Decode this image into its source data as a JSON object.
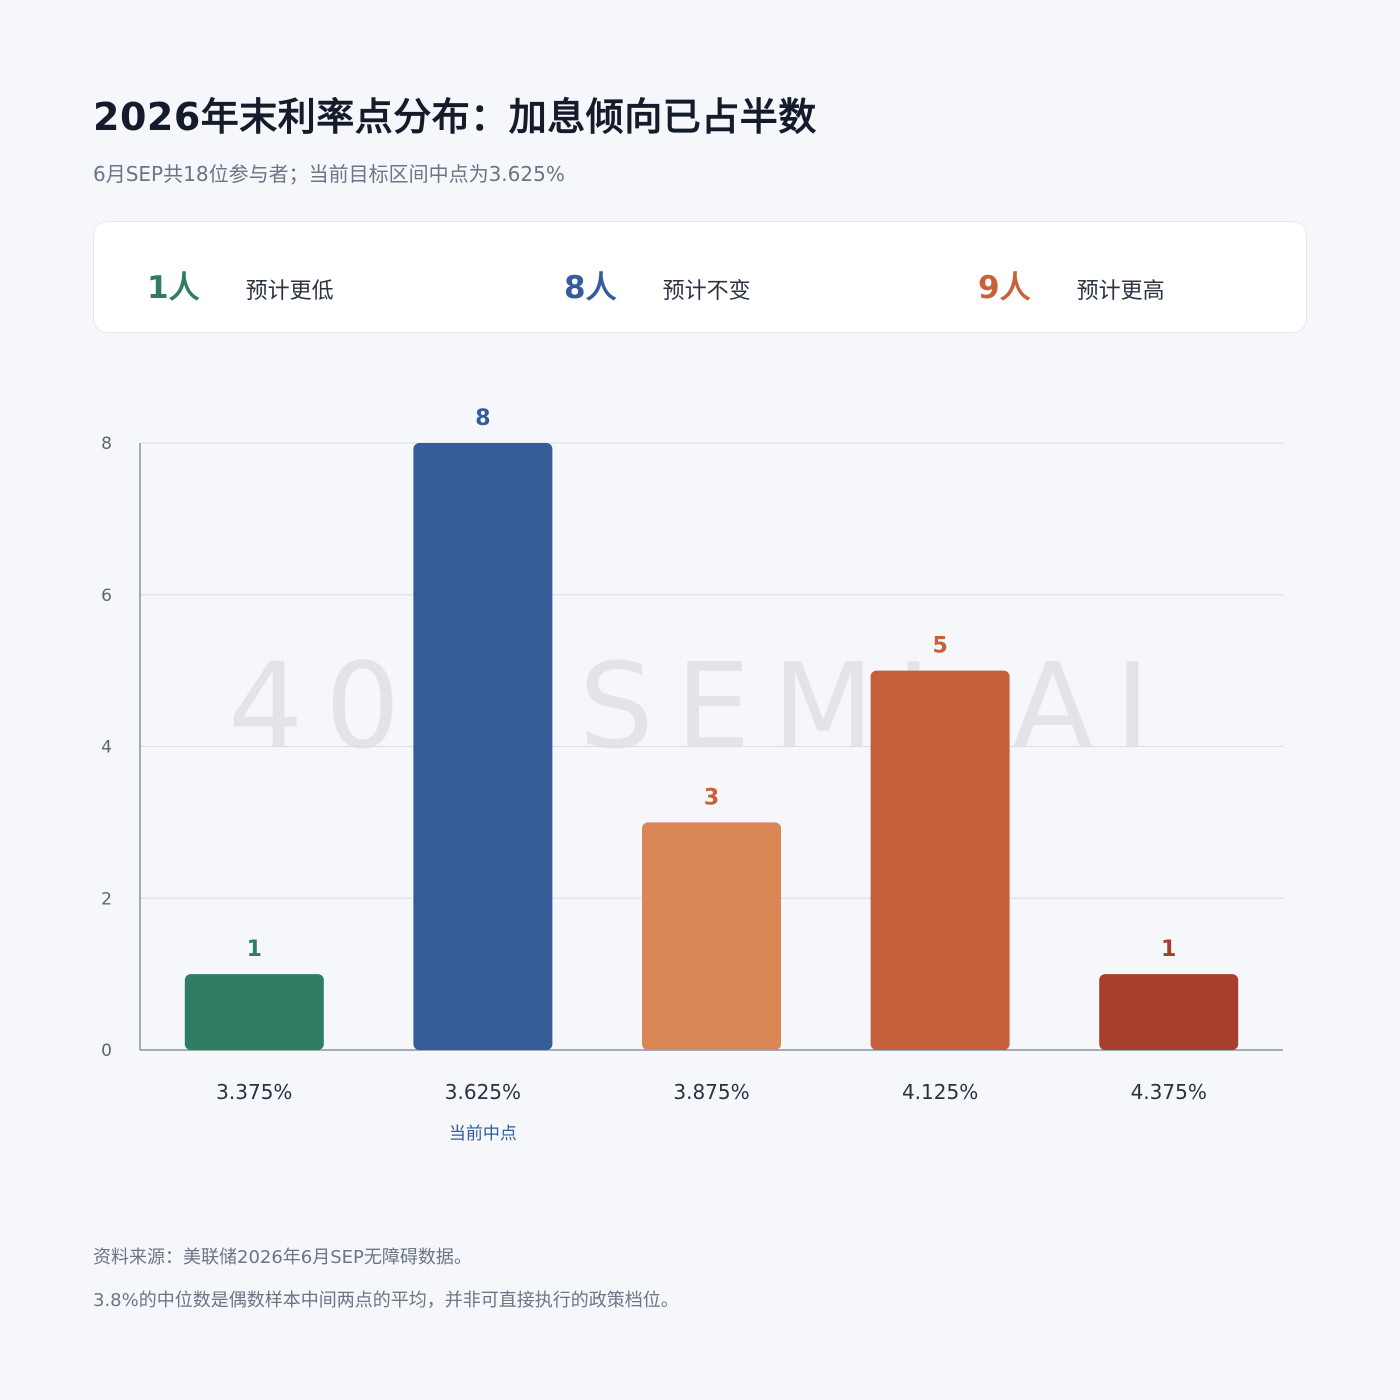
{
  "title": "2026年末利率点分布：加息倾向已占半数",
  "subtitle": "6月SEP共18位参与者；当前目标区间中点为3.625%",
  "summary": [
    {
      "count": "1人",
      "label": "预计更低",
      "color": "#2e7d63"
    },
    {
      "count": "8人",
      "label": "预计不变",
      "color": "#345d99"
    },
    {
      "count": "9人",
      "label": "预计更高",
      "color": "#c8603a"
    }
  ],
  "watermark": "404 SEMI AI",
  "chart_data": {
    "type": "bar",
    "categories": [
      "3.375%",
      "3.625%",
      "3.875%",
      "4.125%",
      "4.375%"
    ],
    "values": [
      1,
      8,
      3,
      5,
      1
    ],
    "colors": [
      "#2f7d63",
      "#335c99",
      "#d98855",
      "#c65f3b",
      "#a83f2e"
    ],
    "label_colors": [
      "#2f7d63",
      "#335c99",
      "#c8603a",
      "#c8603a",
      "#a83f2e"
    ],
    "ylim": [
      0,
      8
    ],
    "yticks": [
      0,
      2,
      4,
      6,
      8
    ],
    "grid": true,
    "annotation": {
      "category": "3.625%",
      "text": "当前中点"
    },
    "xlabel": "",
    "ylabel": "",
    "title": ""
  },
  "footer": {
    "source": "资料来源：美联储2026年6月SEP无障碍数据。",
    "note": "3.8%的中位数是偶数样本中间两点的平均，并非可直接执行的政策档位。"
  }
}
